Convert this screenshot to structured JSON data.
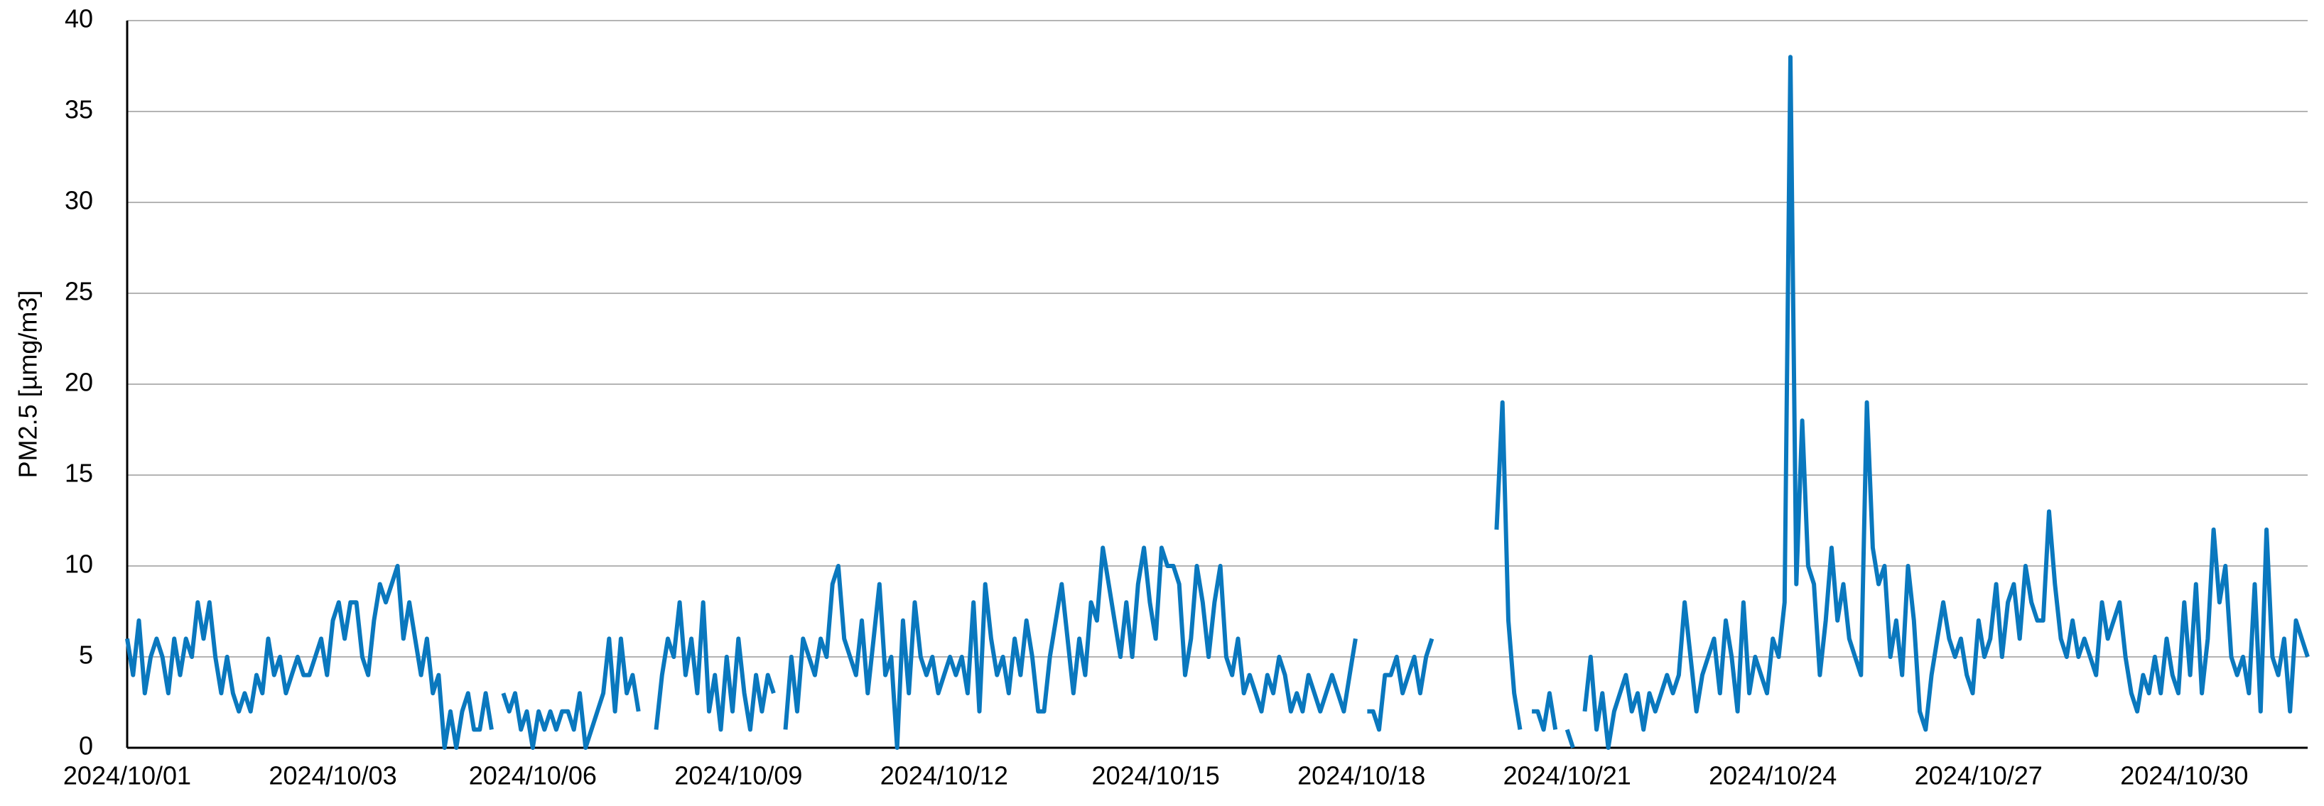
{
  "chart_data": {
    "type": "line",
    "y_label": "PM2.5 [µmg/m3]",
    "categories": [
      "2024/10/01",
      null,
      null,
      null,
      null,
      null,
      null,
      null,
      null,
      null,
      null,
      null,
      null,
      null,
      null,
      null,
      null,
      null,
      null,
      null,
      null,
      null,
      null,
      null,
      null,
      null,
      null,
      null,
      null,
      null,
      null,
      null,
      null,
      null,
      null,
      "2024/10/03",
      null,
      null,
      null,
      null,
      null,
      null,
      null,
      null,
      null,
      null,
      null,
      null,
      null,
      null,
      null,
      null,
      null,
      null,
      null,
      null,
      null,
      null,
      null,
      null,
      null,
      null,
      null,
      null,
      null,
      null,
      null,
      null,
      null,
      "2024/10/06",
      null,
      null,
      null,
      null,
      null,
      null,
      null,
      null,
      null,
      null,
      null,
      null,
      null,
      null,
      null,
      null,
      null,
      null,
      null,
      null,
      null,
      null,
      null,
      null,
      null,
      null,
      null,
      null,
      null,
      null,
      null,
      null,
      null,
      null,
      "2024/10/09",
      null,
      null,
      null,
      null,
      null,
      null,
      null,
      null,
      null,
      null,
      null,
      null,
      null,
      null,
      null,
      null,
      null,
      null,
      null,
      null,
      null,
      null,
      null,
      null,
      null,
      null,
      null,
      null,
      null,
      null,
      null,
      null,
      null,
      null,
      "2024/10/12",
      null,
      null,
      null,
      null,
      null,
      null,
      null,
      null,
      null,
      null,
      null,
      null,
      null,
      null,
      null,
      null,
      null,
      null,
      null,
      null,
      null,
      null,
      null,
      null,
      null,
      null,
      null,
      null,
      null,
      null,
      null,
      null,
      null,
      null,
      null,
      "2024/10/15",
      null,
      null,
      null,
      null,
      null,
      null,
      null,
      null,
      null,
      null,
      null,
      null,
      null,
      null,
      null,
      null,
      null,
      null,
      null,
      null,
      null,
      null,
      null,
      null,
      null,
      null,
      null,
      null,
      null,
      null,
      null,
      null,
      null,
      null,
      "2024/10/18",
      null,
      null,
      null,
      null,
      null,
      null,
      null,
      null,
      null,
      null,
      null,
      null,
      null,
      null,
      null,
      null,
      null,
      null,
      null,
      null,
      null,
      null,
      null,
      null,
      null,
      null,
      null,
      null,
      null,
      null,
      null,
      null,
      null,
      null,
      "2024/10/21",
      null,
      null,
      null,
      null,
      null,
      null,
      null,
      null,
      null,
      null,
      null,
      null,
      null,
      null,
      null,
      null,
      null,
      null,
      null,
      null,
      null,
      null,
      null,
      null,
      null,
      null,
      null,
      null,
      null,
      null,
      null,
      null,
      null,
      null,
      "2024/10/24",
      null,
      null,
      null,
      null,
      null,
      null,
      null,
      null,
      null,
      null,
      null,
      null,
      null,
      null,
      null,
      null,
      null,
      null,
      null,
      null,
      null,
      null,
      null,
      null,
      null,
      null,
      null,
      null,
      null,
      null,
      null,
      null,
      null,
      null,
      "2024/10/27",
      null,
      null,
      null,
      null,
      null,
      null,
      null,
      null,
      null,
      null,
      null,
      null,
      null,
      null,
      null,
      null,
      null,
      null,
      null,
      null,
      null,
      null,
      null,
      null,
      null,
      null,
      null,
      null,
      null,
      null,
      null,
      null,
      null,
      null,
      "2024/10/30",
      null,
      null,
      null,
      null,
      null,
      null,
      null,
      null,
      null,
      null,
      null,
      null,
      null,
      null,
      null,
      null,
      null,
      null,
      null,
      null,
      null
    ],
    "series": [
      {
        "color": "#0a78be",
        "values": [
          6,
          4,
          7,
          3,
          5,
          6,
          5,
          3,
          6,
          4,
          6,
          5,
          8,
          6,
          8,
          5,
          3,
          5,
          3,
          2,
          3,
          2,
          4,
          3,
          6,
          4,
          5,
          3,
          4,
          5,
          4,
          4,
          5,
          6,
          4,
          7,
          8,
          6,
          8,
          8,
          5,
          4,
          7,
          9,
          8,
          9,
          10,
          6,
          8,
          6,
          4,
          6,
          3,
          4,
          0,
          2,
          0,
          2,
          3,
          1,
          1,
          3,
          1,
          null,
          3,
          2,
          3,
          1,
          2,
          0,
          2,
          1,
          2,
          1,
          2,
          2,
          1,
          3,
          0,
          1,
          2,
          3,
          6,
          2,
          6,
          3,
          4,
          2,
          null,
          null,
          1,
          4,
          6,
          5,
          8,
          4,
          6,
          3,
          8,
          2,
          4,
          1,
          5,
          2,
          6,
          3,
          1,
          4,
          2,
          4,
          3,
          null,
          1,
          5,
          2,
          6,
          5,
          4,
          6,
          5,
          9,
          10,
          6,
          5,
          4,
          7,
          3,
          6,
          9,
          4,
          5,
          0,
          7,
          3,
          8,
          5,
          4,
          5,
          3,
          4,
          5,
          4,
          5,
          3,
          8,
          2,
          9,
          6,
          4,
          5,
          3,
          6,
          4,
          7,
          5,
          2,
          2,
          5,
          7,
          9,
          6,
          3,
          6,
          4,
          8,
          7,
          11,
          9,
          7,
          5,
          8,
          5,
          9,
          11,
          8,
          6,
          11,
          10,
          10,
          9,
          4,
          6,
          10,
          8,
          5,
          8,
          10,
          5,
          4,
          6,
          3,
          4,
          3,
          2,
          4,
          3,
          5,
          4,
          2,
          3,
          2,
          4,
          3,
          2,
          3,
          4,
          3,
          2,
          4,
          6,
          null,
          2,
          2,
          1,
          4,
          4,
          5,
          3,
          4,
          5,
          3,
          5,
          6,
          null,
          null,
          null,
          null,
          null,
          null,
          null,
          null,
          null,
          null,
          12,
          19,
          7,
          3,
          1,
          null,
          2,
          2,
          1,
          3,
          1,
          null,
          1,
          0,
          null,
          2,
          5,
          1,
          3,
          0,
          2,
          3,
          4,
          2,
          3,
          1,
          3,
          2,
          3,
          4,
          3,
          4,
          8,
          5,
          2,
          4,
          5,
          6,
          3,
          7,
          5,
          2,
          8,
          3,
          5,
          4,
          3,
          6,
          5,
          8,
          38,
          9,
          18,
          10,
          9,
          4,
          7,
          11,
          7,
          9,
          6,
          5,
          4,
          19,
          11,
          9,
          10,
          5,
          7,
          4,
          10,
          7,
          2,
          1,
          4,
          6,
          8,
          6,
          5,
          6,
          4,
          3,
          7,
          5,
          6,
          9,
          5,
          8,
          9,
          6,
          10,
          8,
          7,
          7,
          13,
          9,
          6,
          5,
          7,
          5,
          6,
          5,
          4,
          8,
          6,
          7,
          8,
          5,
          3,
          2,
          4,
          3,
          5,
          3,
          6,
          4,
          3,
          8,
          4,
          9,
          3,
          6,
          12,
          8,
          10,
          5,
          4,
          5,
          3,
          9,
          2,
          12,
          5,
          4,
          6,
          2,
          7,
          6,
          5
        ]
      }
    ],
    "ylim": [
      0,
      40
    ],
    "yticks": [
      0,
      5,
      10,
      15,
      20,
      25,
      30,
      35,
      40
    ],
    "grid": true
  }
}
